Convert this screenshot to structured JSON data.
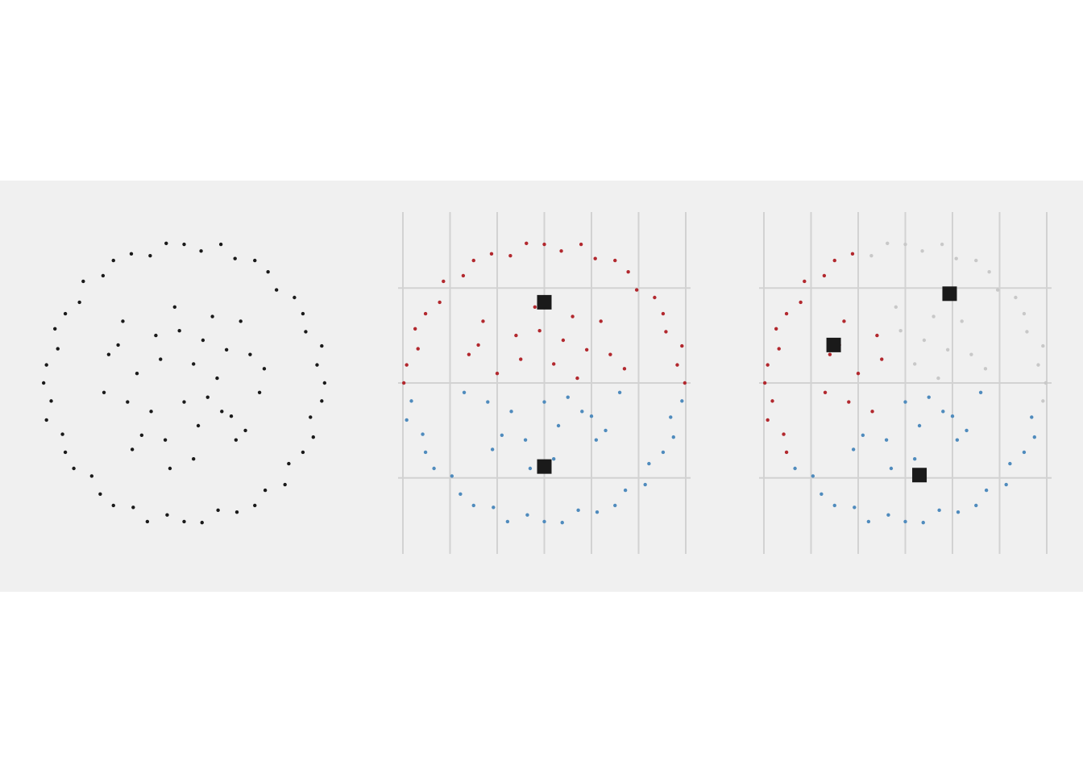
{
  "chart_data": [
    {
      "type": "scatter",
      "xlim": [
        -1.5,
        1.5
      ],
      "ylim": [
        -1.8,
        1.8
      ],
      "grid": false,
      "series": [
        {
          "color": "#1a1a1a",
          "x": [
            1.49,
            1.41,
            1.46,
            1.29,
            1.26,
            1.17,
            0.98,
            0.89,
            0.75,
            0.54,
            0.39,
            0.18,
            0,
            -0.19,
            -0.36,
            -0.56,
            -0.75,
            -0.86,
            -1.07,
            -1.11,
            -1.26,
            -1.37,
            -1.34,
            -1.46,
            -1.49,
            -1.41,
            -1.46,
            -1.29,
            -1.26,
            -1.17,
            -0.98,
            -0.89,
            -0.75,
            -0.54,
            -0.39,
            -0.18,
            0,
            0.19,
            0.36,
            0.56,
            0.75,
            0.86,
            1.07,
            1.11,
            1.26,
            1.37,
            1.34,
            1.46,
            0.1,
            -0.3,
            0.4,
            -0.6,
            0.7,
            -0.2,
            0.3,
            -0.7,
            0.55,
            -0.45,
            0,
            0.2,
            -0.5,
            0.8,
            -0.1,
            0.35,
            -0.25,
            0.6,
            -0.65,
            0.1,
            -0.85,
            0.5,
            -0.35,
            0.15,
            -0.05,
            0.85,
            -0.55,
            0.45,
            -0.8,
            0.25,
            -0.15,
            0.65
          ],
          "values": [
            0,
            0.19,
            0.39,
            0.54,
            0.73,
            0.9,
            0.98,
            1.17,
            1.29,
            1.31,
            1.46,
            1.39,
            1.46,
            1.47,
            1.34,
            1.36,
            1.29,
            1.13,
            1.07,
            0.85,
            0.73,
            0.57,
            0.36,
            0.19,
            0,
            -0.19,
            -0.39,
            -0.54,
            -0.73,
            -0.9,
            -0.98,
            -1.17,
            -1.29,
            -1.31,
            -1.46,
            -1.39,
            -1.46,
            -1.47,
            -1.34,
            -1.36,
            -1.29,
            -1.13,
            -1.07,
            -0.85,
            -0.73,
            -0.57,
            -0.36,
            -0.19,
            0.2,
            0.5,
            -0.3,
            -0.2,
            0.3,
            -0.6,
            0.7,
            0.4,
            -0.6,
            -0.55,
            -0.2,
            0.45,
            0.1,
            -0.1,
            0.8,
            0.05,
            0.25,
            0.65,
            0.65,
            -0.8,
            -0.1,
            -0.35,
            -0.3,
            -0.45,
            0.55,
            0.15,
            -0.7,
            0.35,
            0.3,
            -0.15,
            -0.9,
            -0.5
          ]
        }
      ]
    },
    {
      "type": "scatter",
      "xlim": [
        -1.5,
        1.5
      ],
      "ylim": [
        -1.8,
        1.8
      ],
      "grid": true,
      "xticks": [
        -1.5,
        -1,
        -0.5,
        0,
        0.5,
        1,
        1.5
      ],
      "yticks": [
        -1,
        0,
        1
      ],
      "series": [
        {
          "color": "#b2282e",
          "x": [
            1.49,
            1.41,
            1.46,
            1.29,
            1.26,
            1.17,
            0.98,
            0.89,
            0.75,
            0.54,
            0.39,
            0.18,
            0,
            -0.19,
            -0.36,
            -0.56,
            -0.75,
            -0.86,
            -1.07,
            -1.11,
            -1.26,
            -1.37,
            -1.34,
            -1.46,
            -1.49,
            0.1,
            -0.3,
            0.7,
            0.3,
            -0.7,
            0.2,
            -0.5,
            -0.1,
            0.35,
            -0.25,
            0.6,
            -0.65,
            -0.05,
            0.85,
            0.45,
            -0.8
          ],
          "values": [
            0,
            0.19,
            0.39,
            0.54,
            0.73,
            0.9,
            0.98,
            1.17,
            1.29,
            1.31,
            1.46,
            1.39,
            1.46,
            1.47,
            1.34,
            1.36,
            1.29,
            1.13,
            1.07,
            0.85,
            0.73,
            0.57,
            0.36,
            0.19,
            0,
            0.2,
            0.5,
            0.3,
            0.7,
            0.4,
            0.45,
            0.1,
            0.8,
            0.05,
            0.25,
            0.65,
            0.65,
            0.55,
            0.15,
            0.35,
            0.3
          ]
        },
        {
          "color": "#4f8bbd",
          "x": [
            -1.41,
            -1.46,
            -1.29,
            -1.26,
            -1.17,
            -0.98,
            -0.89,
            -0.75,
            -0.54,
            -0.39,
            -0.18,
            0,
            0.19,
            0.36,
            0.56,
            0.75,
            0.86,
            1.07,
            1.11,
            1.26,
            1.37,
            1.34,
            1.46,
            0.4,
            -0.6,
            -0.2,
            0.55,
            -0.45,
            0,
            0.8,
            0.1,
            -0.85,
            0.5,
            -0.35,
            0.15,
            -0.55,
            0.25,
            -0.15,
            0.65
          ],
          "values": [
            -0.19,
            -0.39,
            -0.54,
            -0.73,
            -0.9,
            -0.98,
            -1.17,
            -1.29,
            -1.31,
            -1.46,
            -1.39,
            -1.46,
            -1.47,
            -1.34,
            -1.36,
            -1.29,
            -1.13,
            -1.07,
            -0.85,
            -0.73,
            -0.57,
            -0.36,
            -0.19,
            -0.3,
            -0.2,
            -0.6,
            -0.6,
            -0.55,
            -0.2,
            -0.1,
            -0.8,
            -0.1,
            -0.35,
            -0.3,
            -0.45,
            -0.7,
            -0.15,
            -0.9,
            -0.5
          ]
        }
      ],
      "centroids": {
        "color": "#1a1a1a",
        "x": [
          0,
          0
        ],
        "values": [
          0.85,
          -0.88
        ]
      }
    },
    {
      "type": "scatter",
      "xlim": [
        -1.5,
        1.5
      ],
      "ylim": [
        -1.8,
        1.8
      ],
      "grid": true,
      "xticks": [
        -1.5,
        -1,
        -0.5,
        0,
        0.5,
        1,
        1.5
      ],
      "yticks": [
        -1,
        0,
        1
      ],
      "series": [
        {
          "color": "#c8c8c8",
          "x": [
            1.49,
            1.41,
            1.46,
            1.29,
            1.26,
            1.17,
            0.98,
            0.89,
            0.75,
            0.54,
            0.39,
            0.18,
            0,
            -0.19,
            -0.36,
            1.46,
            0.1,
            0.7,
            0.3,
            0.2,
            -0.1,
            0.35,
            0.6,
            -0.05,
            0.85,
            0.45
          ],
          "values": [
            0,
            0.19,
            0.39,
            0.54,
            0.73,
            0.9,
            0.98,
            1.17,
            1.29,
            1.31,
            1.46,
            1.39,
            1.46,
            1.47,
            1.34,
            -0.19,
            0.2,
            0.3,
            0.7,
            0.45,
            0.8,
            0.05,
            0.65,
            0.55,
            0.15,
            0.35
          ]
        },
        {
          "color": "#b2282e",
          "x": [
            -0.56,
            -0.75,
            -0.86,
            -1.07,
            -1.11,
            -1.26,
            -1.37,
            -1.34,
            -1.46,
            -1.49,
            -1.41,
            -1.46,
            -1.29,
            -1.26,
            -0.3,
            -0.6,
            -0.7,
            -0.5,
            -0.25,
            -0.65,
            -0.85,
            -0.35,
            -0.8
          ],
          "values": [
            1.36,
            1.29,
            1.13,
            1.07,
            0.85,
            0.73,
            0.57,
            0.36,
            0.19,
            0,
            -0.19,
            -0.39,
            -0.54,
            -0.73,
            0.5,
            -0.2,
            0.4,
            0.1,
            0.25,
            0.65,
            -0.1,
            -0.3,
            0.3
          ]
        },
        {
          "color": "#4f8bbd",
          "x": [
            -1.17,
            -0.98,
            -0.89,
            -0.75,
            -0.54,
            -0.39,
            -0.18,
            0,
            0.19,
            0.36,
            0.56,
            0.75,
            0.86,
            1.07,
            1.11,
            1.26,
            1.37,
            1.34,
            0.4,
            -0.2,
            0.55,
            -0.45,
            0,
            0.8,
            0.1,
            0.5,
            0.15,
            -0.55,
            0.25,
            -0.15,
            0.65
          ],
          "values": [
            -0.9,
            -0.98,
            -1.17,
            -1.29,
            -1.31,
            -1.46,
            -1.39,
            -1.46,
            -1.47,
            -1.34,
            -1.36,
            -1.29,
            -1.13,
            -1.07,
            -0.85,
            -0.73,
            -0.57,
            -0.36,
            -0.3,
            -0.6,
            -0.6,
            -0.55,
            -0.2,
            -0.1,
            -0.8,
            -0.35,
            -0.45,
            -0.7,
            -0.15,
            -0.9,
            -0.5
          ]
        }
      ],
      "centroids": {
        "color": "#1a1a1a",
        "x": [
          0.47,
          -0.76,
          0.15
        ],
        "values": [
          0.94,
          0.4,
          -0.97
        ]
      }
    }
  ]
}
